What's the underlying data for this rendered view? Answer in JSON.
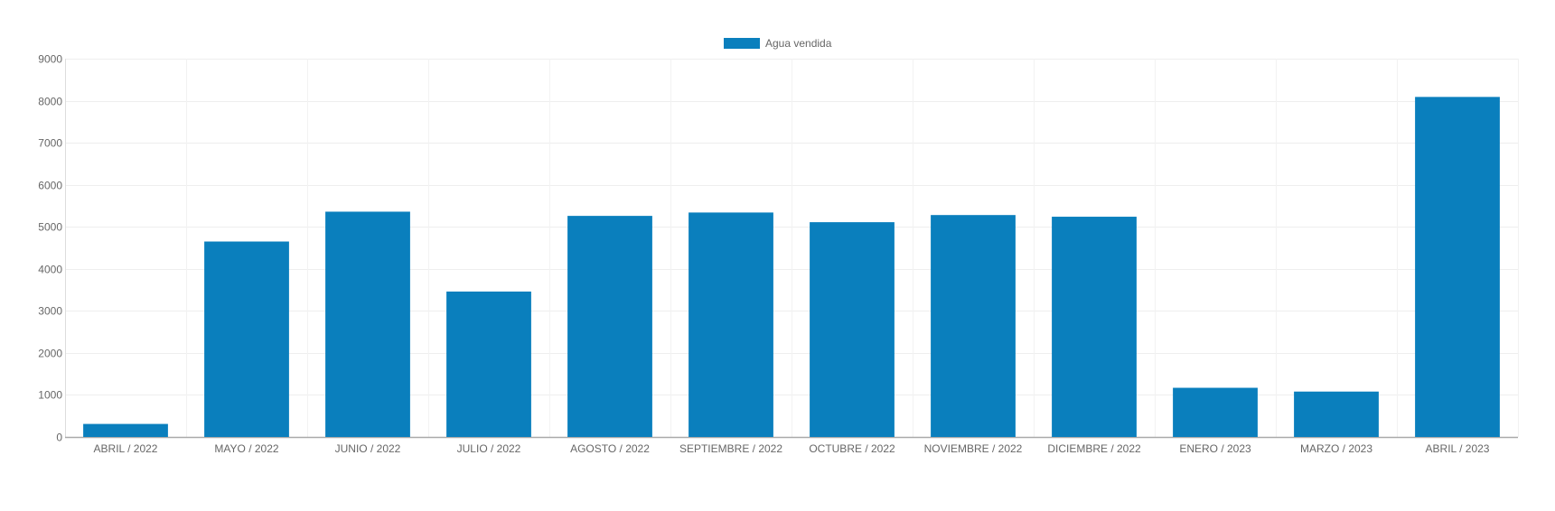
{
  "chart_data": {
    "type": "bar",
    "title": "",
    "xlabel": "",
    "ylabel": "",
    "categories": [
      "ABRIL / 2022",
      "MAYO / 2022",
      "JUNIO / 2022",
      "JULIO / 2022",
      "AGOSTO / 2022",
      "SEPTIEMBRE / 2022",
      "OCTUBRE / 2022",
      "NOVIEMBRE / 2022",
      "DICIEMBRE / 2022",
      "ENERO / 2023",
      "MARZO / 2023",
      "ABRIL / 2023"
    ],
    "series": [
      {
        "name": "Agua vendida",
        "color": "#0a7fbd",
        "values": [
          310,
          4650,
          5360,
          3460,
          5260,
          5340,
          5110,
          5280,
          5240,
          1170,
          1080,
          8090
        ]
      }
    ],
    "ylim": [
      0,
      9000
    ],
    "yticks": [
      0,
      1000,
      2000,
      3000,
      4000,
      5000,
      6000,
      7000,
      8000,
      9000
    ],
    "grid": true,
    "legend_position": "top-center"
  }
}
